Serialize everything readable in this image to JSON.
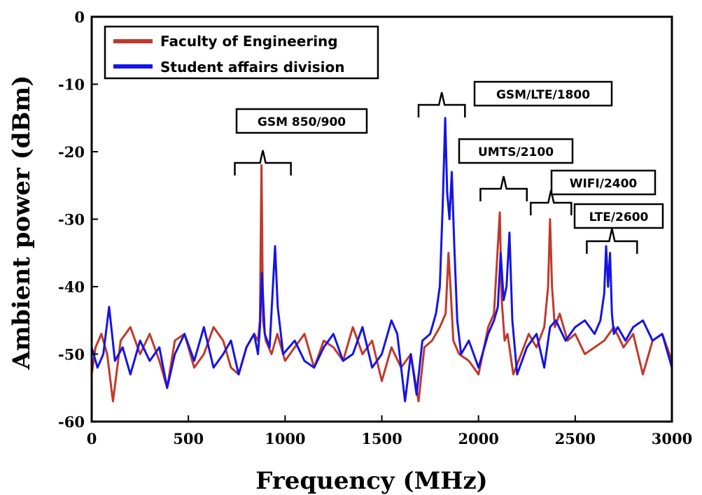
{
  "chart_data": {
    "type": "line",
    "title": "",
    "xlabel": "Frequency (MHz)",
    "ylabel": "Ambient power (dBm)",
    "xlim": [
      0,
      3000
    ],
    "ylim": [
      -60,
      0
    ],
    "xticks": [
      0,
      500,
      1000,
      1500,
      2000,
      2500,
      3000
    ],
    "yticks": [
      0,
      -10,
      -20,
      -30,
      -40,
      -50,
      -60
    ],
    "grid": false,
    "legend_position": "top-left",
    "series": [
      {
        "name": "Faculty of Engineering",
        "color": "#c0392b",
        "x": [
          0,
          20,
          50,
          80,
          110,
          150,
          200,
          250,
          300,
          350,
          390,
          430,
          480,
          530,
          580,
          630,
          680,
          720,
          760,
          800,
          840,
          860,
          870,
          878,
          886,
          900,
          930,
          960,
          1000,
          1050,
          1100,
          1150,
          1200,
          1250,
          1300,
          1350,
          1400,
          1450,
          1500,
          1550,
          1600,
          1650,
          1690,
          1720,
          1760,
          1800,
          1830,
          1845,
          1855,
          1870,
          1900,
          1950,
          2000,
          2050,
          2080,
          2100,
          2110,
          2120,
          2135,
          2150,
          2180,
          2220,
          2260,
          2300,
          2340,
          2360,
          2370,
          2380,
          2395,
          2420,
          2460,
          2500,
          2550,
          2600,
          2650,
          2700,
          2750,
          2800,
          2850,
          2900,
          2950,
          3000
        ],
        "y": [
          -53,
          -49,
          -47,
          -50,
          -57,
          -48,
          -46,
          -50,
          -47,
          -51,
          -55,
          -48,
          -47,
          -52,
          -50,
          -46,
          -48,
          -52,
          -53,
          -49,
          -47,
          -48,
          -45,
          -22,
          -45,
          -48,
          -50,
          -47,
          -51,
          -49,
          -47,
          -52,
          -48,
          -49,
          -51,
          -46,
          -50,
          -48,
          -54,
          -49,
          -52,
          -50,
          -57,
          -49,
          -48,
          -46,
          -44,
          -35,
          -40,
          -48,
          -50,
          -51,
          -53,
          -46,
          -44,
          -34,
          -29,
          -42,
          -48,
          -47,
          -53,
          -50,
          -47,
          -49,
          -46,
          -40,
          -30,
          -40,
          -46,
          -44,
          -48,
          -47,
          -50,
          -49,
          -48,
          -46,
          -49,
          -47,
          -53,
          -48,
          -47,
          -51
        ]
      },
      {
        "name": "Student affairs division",
        "color": "#1414e6",
        "x": [
          0,
          30,
          60,
          90,
          120,
          160,
          200,
          250,
          300,
          350,
          390,
          430,
          480,
          530,
          580,
          630,
          680,
          720,
          760,
          800,
          840,
          860,
          870,
          880,
          895,
          920,
          935,
          948,
          962,
          990,
          1050,
          1100,
          1150,
          1200,
          1250,
          1300,
          1350,
          1400,
          1450,
          1500,
          1550,
          1580,
          1620,
          1650,
          1680,
          1710,
          1750,
          1780,
          1800,
          1815,
          1828,
          1838,
          1850,
          1862,
          1875,
          1890,
          1910,
          1950,
          2000,
          2050,
          2080,
          2100,
          2115,
          2130,
          2145,
          2160,
          2175,
          2200,
          2250,
          2300,
          2340,
          2370,
          2400,
          2450,
          2500,
          2550,
          2600,
          2630,
          2650,
          2660,
          2670,
          2680,
          2690,
          2700,
          2720,
          2760,
          2800,
          2850,
          2900,
          2950,
          3000
        ],
        "y": [
          -49,
          -52,
          -50,
          -43,
          -51,
          -49,
          -53,
          -48,
          -51,
          -49,
          -55,
          -50,
          -47,
          -51,
          -46,
          -52,
          -50,
          -48,
          -53,
          -49,
          -47,
          -50,
          -46,
          -38,
          -47,
          -49,
          -41,
          -34,
          -43,
          -50,
          -48,
          -51,
          -52,
          -49,
          -47,
          -51,
          -50,
          -46,
          -52,
          -50,
          -45,
          -47,
          -57,
          -50,
          -56,
          -48,
          -47,
          -44,
          -40,
          -28,
          -15,
          -26,
          -30,
          -23,
          -34,
          -45,
          -50,
          -48,
          -52,
          -47,
          -45,
          -43,
          -35,
          -42,
          -40,
          -32,
          -45,
          -53,
          -49,
          -47,
          -52,
          -46,
          -45,
          -48,
          -46,
          -45,
          -47,
          -45,
          -41,
          -34,
          -40,
          -35,
          -44,
          -47,
          -46,
          -48,
          -46,
          -45,
          -48,
          -47,
          -52
        ]
      }
    ],
    "annotations": [
      {
        "text": "GSM 850/900",
        "x_start": 740,
        "x_end": 1030
      },
      {
        "text": "GSM/LTE/1800",
        "x_start": 1690,
        "x_end": 1930
      },
      {
        "text": "UMTS/2100",
        "x_start": 2010,
        "x_end": 2250
      },
      {
        "text": "WIFI/2400",
        "x_start": 2270,
        "x_end": 2480
      },
      {
        "text": "LTE/2600",
        "x_start": 2560,
        "x_end": 2820
      }
    ]
  }
}
